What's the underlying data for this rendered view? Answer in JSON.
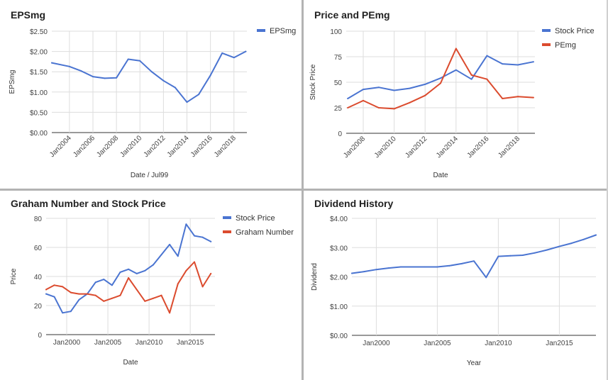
{
  "chart_data": [
    {
      "type": "line",
      "title": "EPSmg",
      "xlabel": "Date / Jul99",
      "ylabel": "EPSmg",
      "xlim": [
        2002.5,
        2019.1
      ],
      "ylim": [
        0,
        2.5
      ],
      "x_ticks": [
        2004,
        2006,
        2008,
        2010,
        2012,
        2014,
        2016,
        2018
      ],
      "x_tick_labels": [
        "Jan2004",
        "Jan2006",
        "Jan2008",
        "Jan2010",
        "Jan2012",
        "Jan2014",
        "Jan2016",
        "Jan2018"
      ],
      "y_ticks": [
        0,
        0.5,
        1,
        1.5,
        2,
        2.5
      ],
      "y_tick_labels": [
        "$0.00",
        "$0.50",
        "$1.00",
        "$1.50",
        "$2.00",
        "$2.50"
      ],
      "legend_position": "top-right",
      "rotate_x_labels": true,
      "grid": true,
      "series": [
        {
          "name": "EPSmg",
          "color": "#4a74d1",
          "x": [
            2002.5,
            2004.0,
            2005.0,
            2006.0,
            2007.0,
            2008.0,
            2009.0,
            2010.0,
            2011.0,
            2012.0,
            2013.0,
            2014.0,
            2015.0,
            2016.0,
            2017.0,
            2018.0,
            2019.0
          ],
          "y": [
            1.72,
            1.63,
            1.52,
            1.38,
            1.34,
            1.35,
            1.81,
            1.77,
            1.5,
            1.28,
            1.11,
            0.75,
            0.94,
            1.41,
            1.96,
            1.85,
            2.0
          ]
        }
      ]
    },
    {
      "type": "line",
      "title": "Price and PEmg",
      "xlabel": "Date",
      "ylabel": "Stock Price",
      "xlim": [
        2006.9,
        2019.1
      ],
      "ylim": [
        0,
        100
      ],
      "x_ticks": [
        2008,
        2010,
        2012,
        2014,
        2016,
        2018
      ],
      "x_tick_labels": [
        "Jan2008",
        "Jan2010",
        "Jan2012",
        "Jan2014",
        "Jan2016",
        "Jan2018"
      ],
      "y_ticks": [
        0,
        25,
        50,
        75,
        100
      ],
      "y_tick_labels": [
        "0",
        "25",
        "50",
        "75",
        "100"
      ],
      "legend_position": "top-right",
      "rotate_x_labels": true,
      "grid": true,
      "series": [
        {
          "name": "Stock Price",
          "color": "#4a74d1",
          "x": [
            2007.0,
            2008.0,
            2009.0,
            2010.0,
            2011.0,
            2012.0,
            2013.0,
            2014.0,
            2015.0,
            2016.0,
            2017.0,
            2018.0,
            2019.0
          ],
          "y": [
            34,
            43,
            45,
            42,
            44,
            48,
            54,
            62,
            53,
            76,
            68,
            67,
            70
          ]
        },
        {
          "name": "PEmg",
          "color": "#db4b2e",
          "x": [
            2007.0,
            2008.0,
            2009.0,
            2010.0,
            2011.0,
            2012.0,
            2013.0,
            2014.0,
            2015.0,
            2016.0,
            2017.0,
            2018.0,
            2019.0
          ],
          "y": [
            25,
            32,
            25,
            24,
            30,
            37,
            49,
            83,
            57,
            53,
            34,
            36,
            35
          ]
        }
      ]
    },
    {
      "type": "line",
      "title": "Graham Number and Stock Price",
      "xlabel": "Date",
      "ylabel": "Price",
      "xlim": [
        1997.5,
        2018.0
      ],
      "ylim": [
        0,
        80
      ],
      "x_ticks": [
        2000,
        2005,
        2010,
        2015
      ],
      "x_tick_labels": [
        "Jan2000",
        "Jan2005",
        "Jan2010",
        "Jan2015"
      ],
      "y_ticks": [
        0,
        20,
        40,
        60,
        80
      ],
      "y_tick_labels": [
        "0",
        "20",
        "40",
        "60",
        "80"
      ],
      "legend_position": "top-right",
      "rotate_x_labels": false,
      "grid": true,
      "series": [
        {
          "name": "Stock Price",
          "color": "#4a74d1",
          "x": [
            1997.5,
            1998.5,
            1999.5,
            2000.5,
            2001.5,
            2002.5,
            2003.5,
            2004.5,
            2005.5,
            2006.5,
            2007.5,
            2008.5,
            2009.5,
            2010.5,
            2011.5,
            2012.5,
            2013.5,
            2014.5,
            2015.5,
            2016.5,
            2017.5
          ],
          "y": [
            28,
            26,
            15,
            16,
            24,
            28,
            36,
            38,
            34,
            43,
            45,
            42,
            44,
            48,
            55,
            62,
            54,
            76,
            68,
            67,
            64
          ]
        },
        {
          "name": "Graham Number",
          "color": "#db4b2e",
          "x": [
            1997.5,
            1998.5,
            1999.5,
            2000.5,
            2001.5,
            2002.5,
            2003.5,
            2004.5,
            2005.5,
            2006.5,
            2007.5,
            2008.5,
            2009.5,
            2010.5,
            2011.5,
            2012.5,
            2013.5,
            2014.5,
            2015.5,
            2016.5,
            2017.5
          ],
          "y": [
            31,
            34,
            33,
            29,
            28,
            28,
            27,
            23,
            25,
            27,
            39,
            31,
            23,
            25,
            27,
            15,
            35,
            44,
            50,
            33,
            42
          ]
        }
      ]
    },
    {
      "type": "line",
      "title": "Dividend History",
      "xlabel": "Year",
      "ylabel": "Dividend",
      "xlim": [
        1998.0,
        2018.0
      ],
      "ylim": [
        0,
        4
      ],
      "x_ticks": [
        2000,
        2005,
        2010,
        2015
      ],
      "x_tick_labels": [
        "Jan2000",
        "Jan2005",
        "Jan2010",
        "Jan2015"
      ],
      "y_ticks": [
        0,
        1,
        2,
        3,
        4
      ],
      "y_tick_labels": [
        "$0.00",
        "$1.00",
        "$2.00",
        "$3.00",
        "$4.00"
      ],
      "legend_position": "none",
      "rotate_x_labels": false,
      "grid": true,
      "series": [
        {
          "name": "",
          "color": "#4a74d1",
          "x": [
            1998.0,
            1999.0,
            2000.0,
            2001.0,
            2002.0,
            2003.0,
            2004.0,
            2005.0,
            2006.0,
            2007.0,
            2008.0,
            2009.0,
            2010.0,
            2011.0,
            2012.0,
            2013.0,
            2014.0,
            2015.0,
            2016.0,
            2017.0,
            2018.0
          ],
          "y": [
            2.12,
            2.18,
            2.25,
            2.3,
            2.34,
            2.34,
            2.34,
            2.34,
            2.38,
            2.45,
            2.54,
            1.98,
            2.7,
            2.72,
            2.74,
            2.82,
            2.92,
            3.04,
            3.15,
            3.28,
            3.43
          ]
        }
      ]
    }
  ]
}
